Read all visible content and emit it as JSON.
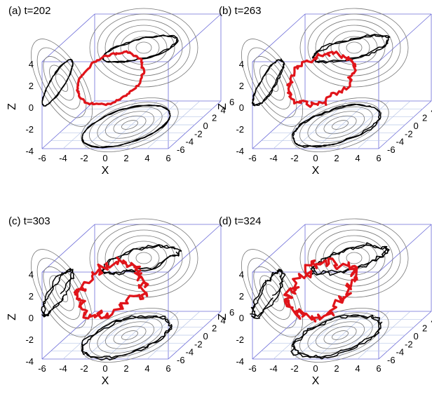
{
  "figure": {
    "panels": [
      {
        "id": "a",
        "title": "(a) t=202"
      },
      {
        "id": "b",
        "title": "(b) t=263"
      },
      {
        "id": "c",
        "title": "(c) t=303"
      },
      {
        "id": "d",
        "title": "(d) t=324"
      }
    ],
    "axes": {
      "x_label": "X",
      "y_label": "Y",
      "z_label": "Z",
      "x_ticks": [
        "-6",
        "-4",
        "-2",
        "0",
        "2",
        "4",
        "6"
      ],
      "y_ticks": [
        "-6",
        "-4",
        "-2",
        "0",
        "2",
        "4",
        "6"
      ],
      "z_ticks": [
        "-4",
        "-2",
        "0",
        "2",
        "4"
      ]
    },
    "colors": {
      "box": "#6b6bd8",
      "floor_grid": "#b9c6e8",
      "contours": "#777777",
      "projection": "#000000",
      "trajectory": "#e0141a"
    }
  }
}
